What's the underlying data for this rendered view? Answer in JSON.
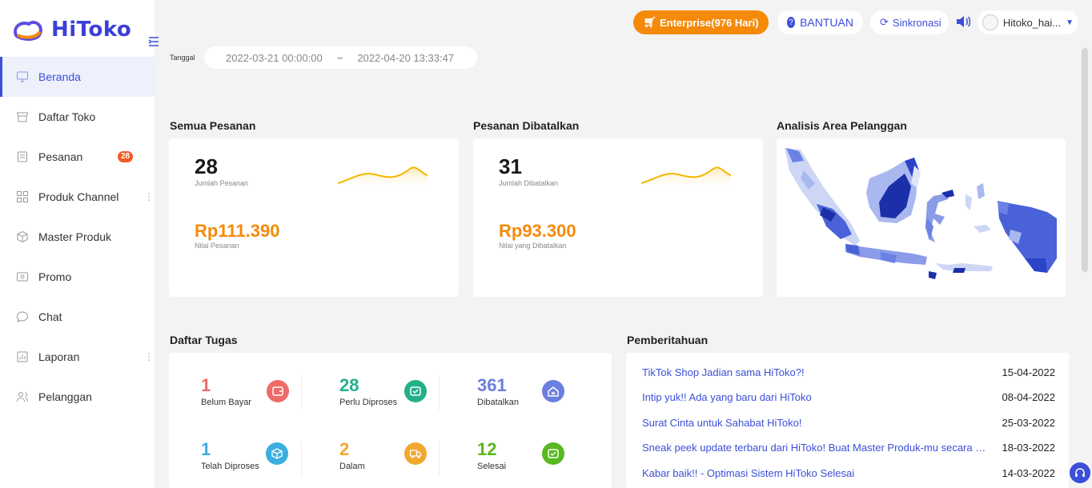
{
  "brand": {
    "name": "HiToko",
    "accent": "#3b4fd8",
    "orange": "#f58a0a"
  },
  "sidebar": {
    "items": [
      {
        "label": "Beranda",
        "icon": "monitor-icon"
      },
      {
        "label": "Daftar Toko",
        "icon": "store-icon"
      },
      {
        "label": "Pesanan",
        "icon": "order-icon",
        "badge": "28"
      },
      {
        "label": "Produk Channel",
        "icon": "grid-icon"
      },
      {
        "label": "Master Produk",
        "icon": "box-icon"
      },
      {
        "label": "Promo",
        "icon": "promo-icon"
      },
      {
        "label": "Chat",
        "icon": "chat-icon"
      },
      {
        "label": "Laporan",
        "icon": "report-icon"
      },
      {
        "label": "Pelanggan",
        "icon": "users-icon"
      }
    ]
  },
  "topbar": {
    "enterprise": "Enterprise(976 Hari)",
    "help": "BANTUAN",
    "sync": "Sinkronasi",
    "user": "Hitoko_hai..."
  },
  "filter": {
    "label": "Tanggal",
    "start": "2022-03-21 00:00:00",
    "separator": "~",
    "end": "2022-04-20 13:33:47"
  },
  "orders": {
    "title": "Semua Pesanan",
    "count": "28",
    "count_label": "Jumlah Pesanan",
    "value": "Rp111.390",
    "value_label": "Nilai Pesanan"
  },
  "cancelled": {
    "title": "Pesanan Dibatalkan",
    "count": "31",
    "count_label": "Jumlah Dibatalkan",
    "value": "Rp93.300",
    "value_label": "Nilai yang Dibatalkan"
  },
  "area": {
    "title": "Analisis Area Pelanggan"
  },
  "tasks": {
    "title": "Daftar Tugas",
    "items": [
      {
        "num": "1",
        "label": "Belum Bayar",
        "color": "#f06a6a"
      },
      {
        "num": "28",
        "label": "Perlu Diproses",
        "color": "#22b08a"
      },
      {
        "num": "361",
        "label": "Dibatalkan",
        "color": "#6b7fe0"
      },
      {
        "num": "1",
        "label": "Telah Diproses",
        "color": "#3aaee0"
      },
      {
        "num": "2",
        "label": "Dalam",
        "color": "#f0a830"
      },
      {
        "num": "12",
        "label": "Selesai",
        "color": "#58b820"
      }
    ]
  },
  "notifications": {
    "title": "Pemberitahuan",
    "items": [
      {
        "title": "TikTok Shop Jadian sama HiToko?!",
        "date": "15-04-2022"
      },
      {
        "title": "Intip yuk!! Ada yang baru dari HiToko",
        "date": "08-04-2022"
      },
      {
        "title": "Surat Cinta untuk Sahabat HiToko!",
        "date": "25-03-2022"
      },
      {
        "title": "Sneak peek update terbaru dari HiToko! Buat Master Produk-mu secara Mas...",
        "date": "18-03-2022"
      },
      {
        "title": "Kabar baik!! - Optimasi Sistem HiToko Selesai",
        "date": "14-03-2022"
      }
    ]
  }
}
